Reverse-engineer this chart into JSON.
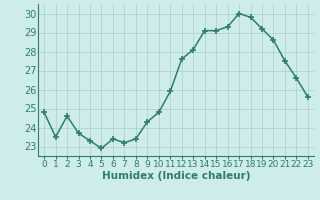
{
  "x": [
    0,
    1,
    2,
    3,
    4,
    5,
    6,
    7,
    8,
    9,
    10,
    11,
    12,
    13,
    14,
    15,
    16,
    17,
    18,
    19,
    20,
    21,
    22,
    23
  ],
  "y": [
    24.8,
    23.5,
    24.6,
    23.7,
    23.3,
    22.9,
    23.4,
    23.2,
    23.4,
    24.3,
    24.8,
    25.9,
    27.6,
    28.1,
    29.1,
    29.1,
    29.3,
    30.0,
    29.8,
    29.2,
    28.6,
    27.5,
    26.6,
    25.6
  ],
  "line_color": "#2e7d6e",
  "marker": "+",
  "marker_size": 4,
  "marker_lw": 1.2,
  "bg_color": "#cdecea",
  "grid_color": "#aacfcc",
  "xlabel": "Humidex (Indice chaleur)",
  "ylabel": "",
  "xlim": [
    -0.5,
    23.5
  ],
  "ylim": [
    22.5,
    30.5
  ],
  "yticks": [
    23,
    24,
    25,
    26,
    27,
    28,
    29,
    30
  ],
  "xtick_labels": [
    "0",
    "1",
    "2",
    "3",
    "4",
    "5",
    "6",
    "7",
    "8",
    "9",
    "10",
    "11",
    "12",
    "13",
    "14",
    "15",
    "16",
    "17",
    "18",
    "19",
    "20",
    "21",
    "22",
    "23"
  ],
  "tick_color": "#2e7d6e",
  "axis_color": "#2e7d6e",
  "xlabel_fontsize": 7.5,
  "ytick_fontsize": 7,
  "xtick_fontsize": 6.5,
  "linewidth": 1.1
}
